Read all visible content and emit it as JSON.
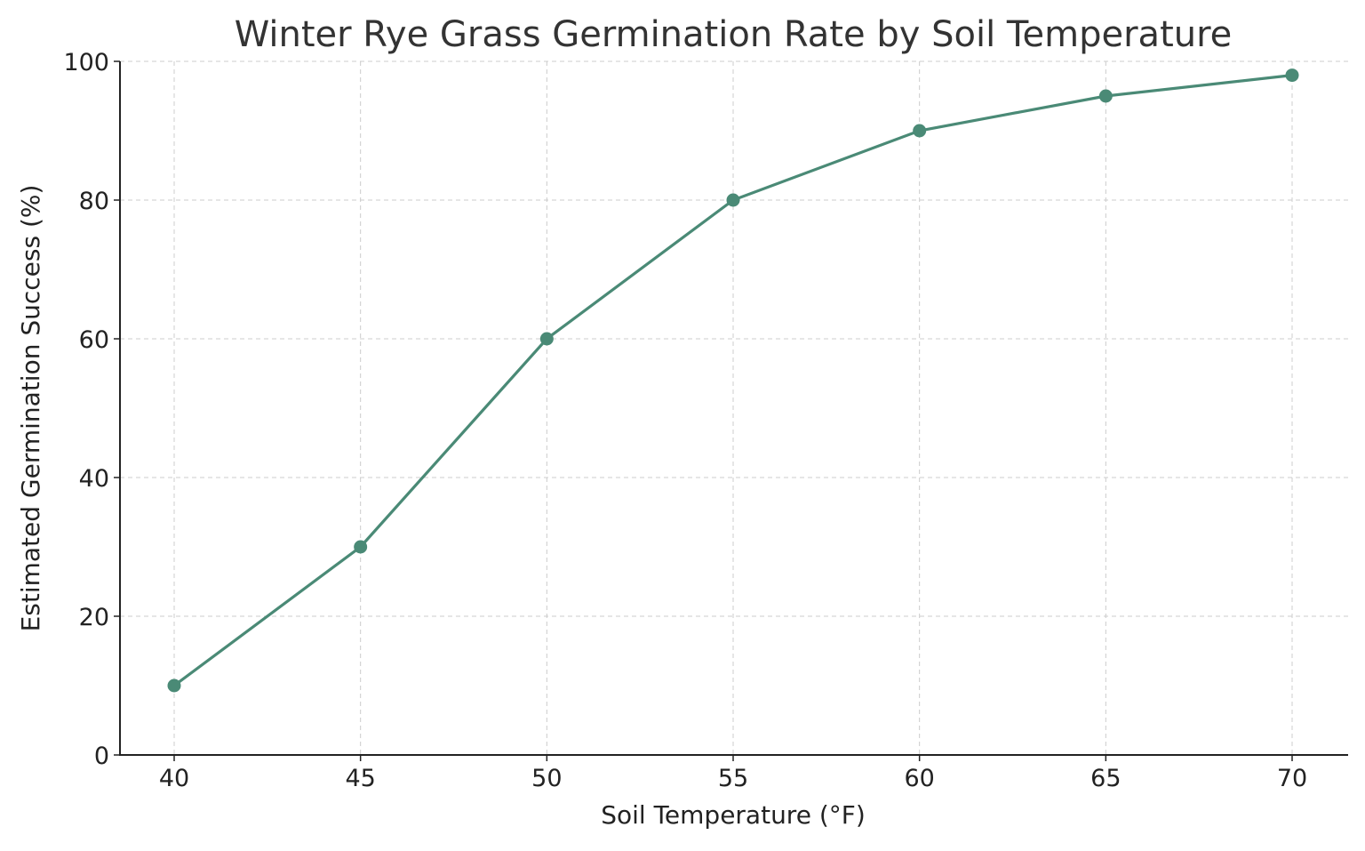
{
  "chart_data": {
    "type": "line",
    "title": "Winter Rye Grass Germination Rate by Soil Temperature",
    "xlabel": "Soil Temperature (°F)",
    "ylabel": "Estimated Germination Success (%)",
    "x": [
      40,
      45,
      50,
      55,
      60,
      65,
      70
    ],
    "series": [
      {
        "values": [
          10,
          30,
          60,
          80,
          90,
          95,
          98
        ],
        "color": "#4a8a76",
        "marker": "circle"
      }
    ],
    "xticks": [
      "40",
      "45",
      "50",
      "55",
      "60",
      "65",
      "70"
    ],
    "yticks": [
      "0",
      "20",
      "40",
      "60",
      "80",
      "100"
    ],
    "xlim": [
      38.55,
      71.5
    ],
    "ylim": [
      0,
      100
    ],
    "grid": true
  }
}
